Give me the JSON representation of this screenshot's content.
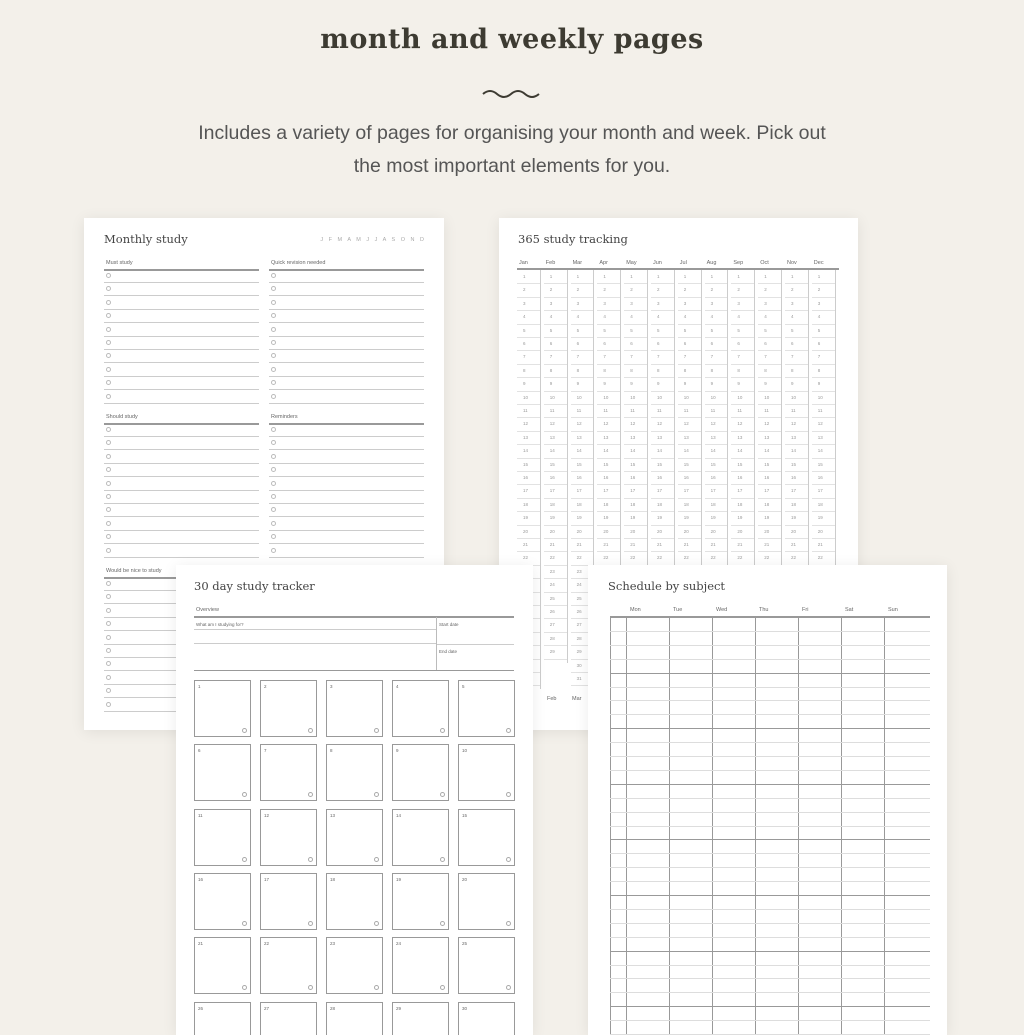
{
  "header": {
    "title": "month and weekly pages",
    "subtitle_line1": "Includes a variety of pages for organising your month and week. Pick out",
    "subtitle_line2": "the most important elements for you."
  },
  "monthly": {
    "title": "Monthly study",
    "month_letters": "J F M A M J J A S O N D",
    "sections": [
      "Must study",
      "Quick revision needed",
      "Should study",
      "Reminders",
      "Would be nice to study"
    ]
  },
  "tracking": {
    "title": "365 study tracking",
    "months": [
      "Jan",
      "Feb",
      "Mar",
      "Apr",
      "May",
      "Jun",
      "Jul",
      "Aug",
      "Sep",
      "Oct",
      "Nov",
      "Dec"
    ],
    "days": [
      31,
      29,
      31,
      30,
      31,
      30,
      31,
      31,
      30,
      31,
      30,
      31
    ],
    "footer_months": [
      "Feb",
      "Mar"
    ]
  },
  "tracker30": {
    "title": "30 day study tracker",
    "overview": "Overview",
    "question": "What am I studying for?",
    "start": "Start date",
    "end": "End date",
    "days": 30
  },
  "schedule": {
    "title": "Schedule by subject",
    "days": [
      "Mon",
      "Tue",
      "Wed",
      "Thu",
      "Fri",
      "Sat",
      "Sun"
    ]
  },
  "colors": {
    "background": "#f3f0ea",
    "title": "#3d3b32",
    "page": "#ffffff"
  }
}
